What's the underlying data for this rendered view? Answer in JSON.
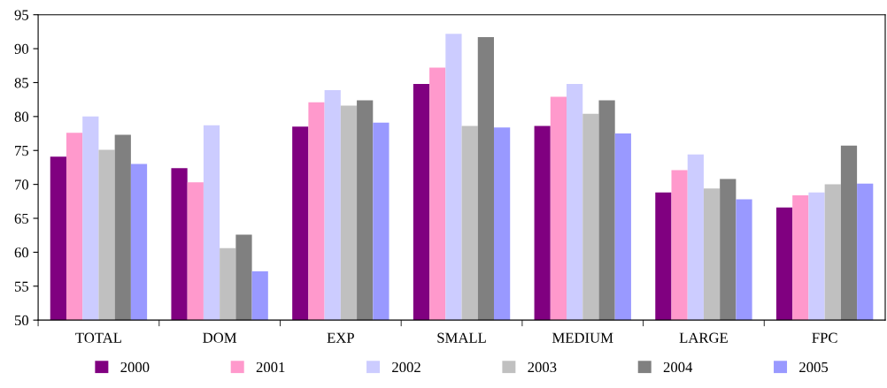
{
  "chart_data": {
    "type": "bar",
    "categories": [
      "TOTAL",
      "DOM",
      "EXP",
      "SMALL",
      "MEDIUM",
      "LARGE",
      "FPC"
    ],
    "series": [
      {
        "name": "2000",
        "color": "#800080",
        "values": [
          74.1,
          72.4,
          78.5,
          84.8,
          78.6,
          68.8,
          66.6
        ]
      },
      {
        "name": "2001",
        "color": "#ff99cc",
        "values": [
          77.6,
          70.3,
          82.1,
          87.2,
          82.9,
          72.1,
          68.4
        ]
      },
      {
        "name": "2002",
        "color": "#ccccff",
        "values": [
          80.0,
          78.7,
          83.9,
          92.2,
          84.8,
          74.4,
          68.8
        ]
      },
      {
        "name": "2003",
        "color": "#c0c0c0",
        "values": [
          75.1,
          60.6,
          81.6,
          78.6,
          80.4,
          69.4,
          70.0
        ]
      },
      {
        "name": "2004",
        "color": "#808080",
        "values": [
          77.3,
          62.6,
          82.4,
          91.7,
          82.4,
          70.8,
          75.7
        ]
      },
      {
        "name": "2005",
        "color": "#9999ff",
        "values": [
          73.0,
          57.2,
          79.1,
          78.4,
          77.5,
          67.8,
          70.1
        ]
      }
    ],
    "ylim": [
      50,
      95
    ],
    "yticks": [
      50,
      55,
      60,
      65,
      70,
      75,
      80,
      85,
      90,
      95
    ],
    "grid": false,
    "legend": "bottom"
  }
}
